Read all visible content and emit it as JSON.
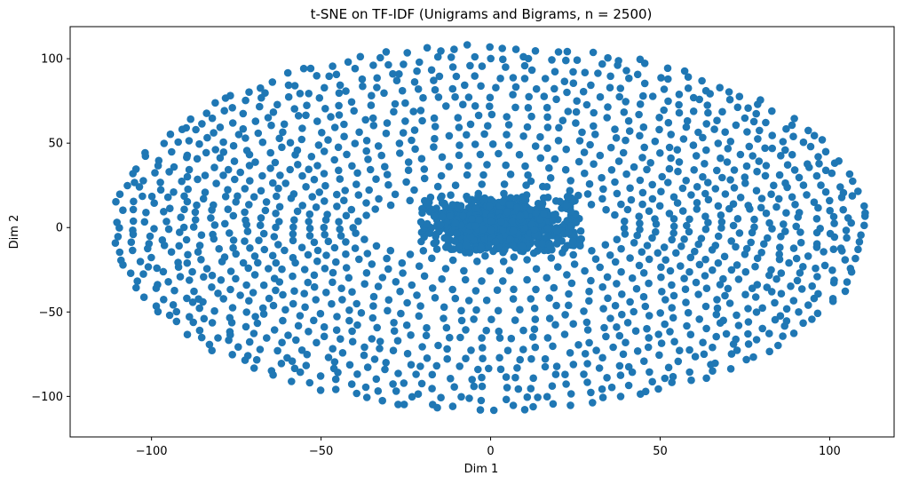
{
  "chart_data": {
    "type": "scatter",
    "title": "t-SNE on TF-IDF (Unigrams and Bigrams, n = 2500)",
    "xlabel": "Dim 1",
    "ylabel": "Dim 2",
    "xlim": [
      -124,
      119
    ],
    "ylim": [
      -124,
      119
    ],
    "xticks": [
      -100,
      -50,
      0,
      50,
      100
    ],
    "yticks": [
      -100,
      -50,
      0,
      50,
      100
    ],
    "grid": false,
    "marker_color": "#1f77b4",
    "series": [
      {
        "n_points": 2500,
        "structure": {
          "outer_ring": {
            "shape": "ellipse",
            "center": [
              0,
              0
            ],
            "inner_radius": [
              40,
              20
            ],
            "outer_radius": [
              110,
              107
            ]
          },
          "inner_cluster": {
            "shape": "blob",
            "center": [
              3,
              2
            ],
            "extent_x": [
              -25,
              27
            ],
            "extent_y": [
              -22,
              31
            ]
          }
        }
      }
    ]
  }
}
